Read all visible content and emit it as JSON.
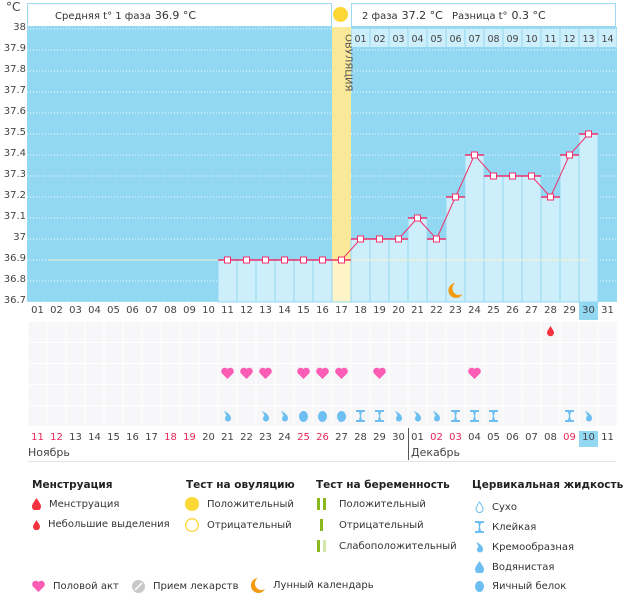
{
  "unit": "°C",
  "header": {
    "phase1_label": "Средняя t° 1 фаза",
    "phase1_value": "36.9 °C",
    "phase2_label": "2 фаза",
    "phase2_value": "37.2 °C",
    "diff_label": "Разница t°",
    "diff_value": "0.3 °C"
  },
  "ovulation_label": "ОВУЛЯЦИЯ",
  "colors": {
    "plot_bg": "#93d8f2",
    "bar": "#cdeefb",
    "ovulation": "#fbe99a",
    "line": "#f0306a",
    "heart": "#fb5cb4",
    "fluid": "#6cbff0",
    "drop": "#f5333f",
    "moon": "#f39c12"
  },
  "chart_data": {
    "type": "line",
    "ylim": [
      36.7,
      38
    ],
    "yticks": [
      "38",
      "37.9",
      "37.8",
      "37.7",
      "37.6",
      "37.5",
      "37.4",
      "37.3",
      "37.2",
      "37.1",
      "37",
      "36.9",
      "36.8",
      "36.7"
    ],
    "cycle_days": [
      "01",
      "02",
      "03",
      "04",
      "05",
      "06",
      "07",
      "08",
      "09",
      "10",
      "11",
      "12",
      "13",
      "14",
      "15",
      "16",
      "17",
      "18",
      "19",
      "20",
      "21",
      "22",
      "23",
      "24",
      "25",
      "26",
      "27",
      "28",
      "29",
      "30",
      "31"
    ],
    "temperatures": [
      null,
      null,
      null,
      null,
      null,
      null,
      null,
      null,
      null,
      null,
      36.9,
      36.9,
      36.9,
      36.9,
      36.9,
      36.9,
      36.9,
      37.0,
      37.0,
      37.0,
      37.1,
      37.0,
      37.2,
      37.4,
      37.3,
      37.3,
      37.3,
      37.2,
      37.4,
      37.5,
      null
    ],
    "coverline": 36.9,
    "ovulation_day": 17,
    "current_day": 30,
    "luteal_days": [
      "01",
      "02",
      "03",
      "04",
      "05",
      "06",
      "07",
      "08",
      "09",
      "10",
      "11",
      "12",
      "13",
      "14"
    ],
    "moon_day": 23
  },
  "calendar": {
    "dates": [
      "11",
      "12",
      "13",
      "14",
      "15",
      "16",
      "17",
      "18",
      "19",
      "20",
      "21",
      "22",
      "23",
      "24",
      "25",
      "26",
      "27",
      "28",
      "29",
      "30",
      "01",
      "02",
      "03",
      "04",
      "05",
      "06",
      "07",
      "08",
      "09",
      "10",
      "11"
    ],
    "red_dates": [
      1,
      2,
      8,
      9,
      15,
      16,
      22,
      23,
      29
    ],
    "months": [
      "Ноябрь",
      "Декабрь"
    ],
    "spotting_days": [
      28
    ],
    "intercourse_days": [
      11,
      12,
      13,
      15,
      16,
      17,
      19,
      24
    ],
    "fluid": {
      "11": "creamy",
      "13": "creamy",
      "14": "creamy",
      "15": "eggwhite",
      "16": "eggwhite",
      "17": "eggwhite",
      "18": "sticky",
      "19": "sticky",
      "20": "creamy",
      "21": "creamy",
      "22": "creamy",
      "23": "sticky",
      "24": "sticky",
      "25": "sticky",
      "29": "sticky",
      "30": "creamy"
    }
  },
  "legend": {
    "menstruation": {
      "title": "Менструация",
      "items": [
        "Менструация",
        "Небольшие выделения"
      ]
    },
    "ovulation_test": {
      "title": "Тест на овуляцию",
      "items": [
        "Положительный",
        "Отрицательный"
      ]
    },
    "pregnancy_test": {
      "title": "Тест на беременность",
      "items": [
        "Положительный",
        "Отрицательный",
        "Слабоположительный"
      ]
    },
    "cervical_fluid": {
      "title": "Цервикальная жидкость",
      "items": [
        "Сухо",
        "Клейкая",
        "Кремообразная",
        "Водянистая",
        "Яичный белок"
      ]
    },
    "other": [
      "Половой акт",
      "Прием лекарств",
      "Лунный календарь"
    ]
  }
}
